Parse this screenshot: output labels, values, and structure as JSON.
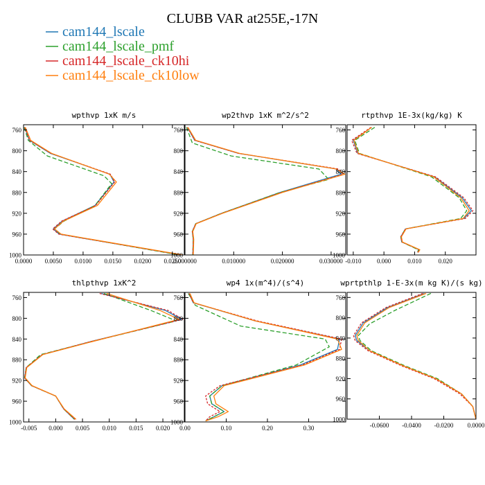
{
  "figure": {
    "title": "CLUBB VAR at255E,-17N",
    "legend": [
      {
        "name": "cam144_lscale",
        "color": "#1f77b4"
      },
      {
        "name": "cam144_lscale_pmf",
        "color": "#2ca02c"
      },
      {
        "name": "cam144_lscale_ck10hi",
        "color": "#d62728"
      },
      {
        "name": "cam144_lscale_ck10low",
        "color": "#ff7f0e"
      }
    ]
  },
  "chart_data": [
    {
      "type": "line",
      "title": "wpthvp  1xK m/s",
      "xlim": [
        0,
        0.027
      ],
      "ylim": [
        1000,
        750
      ],
      "xticks": [
        0,
        0.005,
        0.01,
        0.015,
        0.02,
        0.025
      ],
      "xtick_labels": [
        "0.0000",
        "0.0050",
        "0.0100",
        "0.0150",
        "0.0200",
        "0.0250"
      ],
      "yticks": [
        760,
        800,
        840,
        880,
        920,
        960,
        1000
      ],
      "ytick_labels": [
        "760",
        "800",
        "840",
        "880",
        "920",
        "960",
        "1000"
      ],
      "series": [
        {
          "name": "cam144_lscale",
          "color": "#1f77b4",
          "dash": "",
          "x": [
            0.0002,
            0.001,
            0.0045,
            0.0145,
            0.0152,
            0.012,
            0.0065,
            0.005,
            0.006,
            0.0265
          ],
          "y": [
            755,
            780,
            805,
            845,
            860,
            905,
            935,
            950,
            960,
            1000
          ]
        },
        {
          "name": "cam144_lscale_pmf",
          "color": "#2ca02c",
          "dash": "6,3",
          "x": [
            0.0001,
            0.0008,
            0.004,
            0.0135,
            0.0148,
            0.012,
            0.0068,
            0.0052,
            0.0062,
            0.0262
          ],
          "y": [
            755,
            780,
            810,
            848,
            863,
            905,
            935,
            950,
            960,
            1000
          ]
        },
        {
          "name": "cam144_lscale_ck10hi",
          "color": "#d62728",
          "dash": "3,2",
          "x": [
            0.0002,
            0.001,
            0.0046,
            0.0146,
            0.0153,
            0.0121,
            0.0064,
            0.0049,
            0.0059,
            0.0266
          ],
          "y": [
            755,
            780,
            805,
            845,
            860,
            905,
            935,
            950,
            960,
            1000
          ]
        },
        {
          "name": "cam144_lscale_ck10low",
          "color": "#ff7f0e",
          "dash": "",
          "x": [
            0.0003,
            0.0012,
            0.0047,
            0.0144,
            0.0156,
            0.0124,
            0.0067,
            0.0052,
            0.0063,
            0.0268
          ],
          "y": [
            755,
            780,
            805,
            845,
            860,
            905,
            935,
            950,
            960,
            1000
          ]
        }
      ]
    },
    {
      "type": "line",
      "title": "wp2thvp  1xK m^2/s^2",
      "xlim": [
        0,
        0.033
      ],
      "ylim": [
        1000,
        750
      ],
      "xticks": [
        0,
        0.01,
        0.02,
        0.03
      ],
      "xtick_labels": [
        "0.000000",
        "0.010000",
        "0.020000",
        "0.030000"
      ],
      "yticks": [
        760,
        800,
        840,
        880,
        920,
        960,
        1000
      ],
      "ytick_labels": [
        "760",
        "800",
        "840",
        "880",
        "920",
        "960",
        "1000"
      ],
      "series": [
        {
          "name": "cam144_lscale",
          "color": "#1f77b4",
          "dash": "",
          "x": [
            0.0005,
            0.002,
            0.011,
            0.031,
            0.032,
            0.0195,
            0.0075,
            0.0022,
            0.0015,
            0.0017,
            0.0016
          ],
          "y": [
            755,
            780,
            805,
            835,
            845,
            880,
            920,
            940,
            955,
            970,
            1000
          ]
        },
        {
          "name": "cam144_lscale_pmf",
          "color": "#2ca02c",
          "dash": "6,3",
          "x": [
            0.0003,
            0.0015,
            0.0095,
            0.0275,
            0.0295,
            0.0195,
            0.0075,
            0.0022,
            0.0015,
            0.0017,
            0.0016
          ],
          "y": [
            755,
            785,
            810,
            835,
            855,
            880,
            920,
            940,
            955,
            970,
            1000
          ]
        },
        {
          "name": "cam144_lscale_ck10hi",
          "color": "#d62728",
          "dash": "3,2",
          "x": [
            0.0005,
            0.002,
            0.011,
            0.0315,
            0.0325,
            0.0198,
            0.0076,
            0.0022,
            0.0015,
            0.0017,
            0.0016
          ],
          "y": [
            755,
            780,
            805,
            835,
            845,
            880,
            920,
            940,
            955,
            970,
            1000
          ]
        },
        {
          "name": "cam144_lscale_ck10low",
          "color": "#ff7f0e",
          "dash": "",
          "x": [
            0.0006,
            0.0022,
            0.0112,
            0.031,
            0.0328,
            0.02,
            0.0077,
            0.0023,
            0.0016,
            0.0018,
            0.0017
          ],
          "y": [
            755,
            780,
            805,
            835,
            845,
            880,
            920,
            940,
            955,
            970,
            1000
          ]
        }
      ]
    },
    {
      "type": "line",
      "title": "rtpthvp  1E-3x(kg/kg) K",
      "xlim": [
        -0.012,
        0.03
      ],
      "ylim": [
        1000,
        750
      ],
      "xticks": [
        -0.01,
        0,
        0.01,
        0.02
      ],
      "xtick_labels": [
        "-0.010",
        "0.000",
        "0.010",
        "0.020"
      ],
      "yticks": [
        760,
        800,
        840,
        880,
        920,
        960,
        1000
      ],
      "ytick_labels": [
        "760",
        "800",
        "840",
        "880",
        "920",
        "960",
        "1000"
      ],
      "series": [
        {
          "name": "cam144_lscale",
          "color": "#1f77b4",
          "dash": "",
          "x": [
            -0.004,
            -0.01,
            -0.0085,
            0.0165,
            0.0255,
            0.0285,
            0.026,
            0.007,
            0.0055,
            0.0058,
            0.0115,
            0.011
          ],
          "y": [
            755,
            780,
            805,
            850,
            890,
            915,
            930,
            950,
            965,
            975,
            990,
            995
          ]
        },
        {
          "name": "cam144_lscale_pmf",
          "color": "#2ca02c",
          "dash": "6,3",
          "x": [
            -0.003,
            -0.0095,
            -0.008,
            0.0155,
            0.0245,
            0.027,
            0.025,
            0.007,
            0.0055,
            0.0058,
            0.0112,
            0.011
          ],
          "y": [
            755,
            780,
            805,
            850,
            890,
            915,
            930,
            950,
            965,
            975,
            990,
            995
          ]
        },
        {
          "name": "cam144_lscale_ck10hi",
          "color": "#d62728",
          "dash": "3,2",
          "x": [
            -0.0042,
            -0.0105,
            -0.0088,
            0.0168,
            0.026,
            0.029,
            0.0265,
            0.007,
            0.0055,
            0.0058,
            0.0116,
            0.011
          ],
          "y": [
            755,
            780,
            805,
            850,
            890,
            915,
            930,
            950,
            965,
            975,
            990,
            995
          ]
        },
        {
          "name": "cam144_lscale_ck10low",
          "color": "#ff7f0e",
          "dash": "",
          "x": [
            -0.004,
            -0.0098,
            -0.0083,
            0.0162,
            0.025,
            0.0278,
            0.0258,
            0.0072,
            0.0057,
            0.006,
            0.0117,
            0.0112
          ],
          "y": [
            755,
            780,
            805,
            850,
            890,
            915,
            930,
            950,
            965,
            975,
            990,
            995
          ]
        }
      ]
    },
    {
      "type": "line",
      "title": "thlpthvp  1xK^2",
      "xlim": [
        -0.006,
        0.024
      ],
      "ylim": [
        1000,
        750
      ],
      "xticks": [
        -0.005,
        0,
        0.005,
        0.01,
        0.015,
        0.02
      ],
      "xtick_labels": [
        "-0.005",
        "0.000",
        "0.005",
        "0.010",
        "0.015",
        "0.020"
      ],
      "yticks": [
        760,
        800,
        840,
        880,
        920,
        960,
        1000
      ],
      "ytick_labels": [
        "760",
        "800",
        "840",
        "880",
        "920",
        "960",
        "1000"
      ],
      "series": [
        {
          "name": "cam144_lscale",
          "color": "#1f77b4",
          "dash": "",
          "x": [
            0.0085,
            0.0205,
            0.0235,
            0.0065,
            -0.0025,
            -0.0055,
            -0.0058,
            -0.0045,
            0.0,
            0.0015,
            0.0035
          ],
          "y": [
            752,
            785,
            802,
            845,
            870,
            895,
            915,
            930,
            950,
            975,
            995
          ]
        },
        {
          "name": "cam144_lscale_pmf",
          "color": "#2ca02c",
          "dash": "6,3",
          "x": [
            0.009,
            0.0178,
            0.0225,
            0.0055,
            -0.0028,
            -0.0055,
            -0.0058,
            -0.0045,
            0.0,
            0.0015,
            0.0035
          ],
          "y": [
            752,
            785,
            805,
            848,
            870,
            895,
            915,
            930,
            950,
            975,
            995
          ]
        },
        {
          "name": "cam144_lscale_ck10hi",
          "color": "#d62728",
          "dash": "3,2",
          "x": [
            0.0082,
            0.021,
            0.0237,
            0.0065,
            -0.0025,
            -0.0055,
            -0.0058,
            -0.0045,
            0.0,
            0.0015,
            0.0036
          ],
          "y": [
            752,
            785,
            802,
            845,
            870,
            895,
            915,
            930,
            950,
            975,
            995
          ]
        },
        {
          "name": "cam144_lscale_ck10low",
          "color": "#ff7f0e",
          "dash": "",
          "x": [
            0.0095,
            0.0195,
            0.023,
            0.0068,
            -0.0024,
            -0.0054,
            -0.0057,
            -0.0044,
            0.0,
            0.0016,
            0.0038
          ],
          "y": [
            752,
            785,
            802,
            845,
            870,
            895,
            915,
            930,
            950,
            975,
            995
          ]
        }
      ]
    },
    {
      "type": "line",
      "title": "wp4  1x(m^4)/(s^4)",
      "xlim": [
        0,
        0.39
      ],
      "ylim": [
        1000,
        750
      ],
      "xticks": [
        0,
        0.1,
        0.2,
        0.3
      ],
      "xtick_labels": [
        "0.00",
        "0.10",
        "0.20",
        "0.30"
      ],
      "yticks": [
        760,
        800,
        840,
        880,
        920,
        960,
        1000
      ],
      "ytick_labels": [
        "760",
        "800",
        "840",
        "880",
        "920",
        "960",
        "1000"
      ],
      "series": [
        {
          "name": "cam144_lscale",
          "color": "#1f77b4",
          "dash": "",
          "x": [
            0.01,
            0.02,
            0.17,
            0.375,
            0.37,
            0.28,
            0.09,
            0.06,
            0.065,
            0.095,
            0.07,
            0.05
          ],
          "y": [
            752,
            770,
            805,
            840,
            860,
            890,
            930,
            950,
            965,
            980,
            990,
            998
          ]
        },
        {
          "name": "cam144_lscale_pmf",
          "color": "#2ca02c",
          "dash": "6,3",
          "x": [
            0.008,
            0.025,
            0.135,
            0.34,
            0.35,
            0.27,
            0.09,
            0.06,
            0.065,
            0.095,
            0.07,
            0.05
          ],
          "y": [
            752,
            775,
            815,
            840,
            855,
            890,
            930,
            950,
            965,
            980,
            990,
            998
          ]
        },
        {
          "name": "cam144_lscale_ck10hi",
          "color": "#d62728",
          "dash": "3,2",
          "x": [
            0.01,
            0.02,
            0.175,
            0.38,
            0.375,
            0.285,
            0.085,
            0.05,
            0.055,
            0.085,
            0.06,
            0.05
          ],
          "y": [
            752,
            770,
            805,
            840,
            860,
            890,
            930,
            950,
            965,
            980,
            990,
            998
          ]
        },
        {
          "name": "cam144_lscale_ck10low",
          "color": "#ff7f0e",
          "dash": "",
          "x": [
            0.012,
            0.022,
            0.17,
            0.37,
            0.38,
            0.29,
            0.095,
            0.07,
            0.075,
            0.105,
            0.08,
            0.05
          ],
          "y": [
            752,
            770,
            805,
            840,
            860,
            890,
            930,
            950,
            965,
            980,
            990,
            998
          ]
        }
      ]
    },
    {
      "type": "line",
      "title": "wprtpthlp  1-E-3x(m kg K)/(s kg)",
      "xlim": [
        -0.08,
        0
      ],
      "ylim": [
        1000,
        750
      ],
      "xticks": [
        -0.06,
        -0.04,
        -0.02,
        0
      ],
      "xtick_labels": [
        "-0.0600",
        "-0.0400",
        "-0.0200",
        "0.0000"
      ],
      "yticks": [
        760,
        800,
        840,
        880,
        920,
        960,
        1000
      ],
      "ytick_labels": [
        "760",
        "800",
        "840",
        "880",
        "920",
        "960",
        "1000"
      ],
      "series": [
        {
          "name": "cam144_lscale",
          "color": "#1f77b4",
          "dash": "",
          "x": [
            -0.032,
            -0.055,
            -0.07,
            -0.075,
            -0.074,
            -0.066,
            -0.045,
            -0.025,
            -0.009,
            -0.002,
            0.0
          ],
          "y": [
            752,
            780,
            810,
            835,
            845,
            865,
            895,
            920,
            950,
            975,
            1000
          ]
        },
        {
          "name": "cam144_lscale_pmf",
          "color": "#2ca02c",
          "dash": "6,3",
          "x": [
            -0.028,
            -0.05,
            -0.066,
            -0.073,
            -0.072,
            -0.065,
            -0.044,
            -0.024,
            -0.009,
            -0.002,
            0.0
          ],
          "y": [
            752,
            785,
            812,
            835,
            845,
            865,
            895,
            920,
            950,
            975,
            1000
          ]
        },
        {
          "name": "cam144_lscale_ck10hi",
          "color": "#d62728",
          "dash": "3,2",
          "x": [
            -0.033,
            -0.056,
            -0.071,
            -0.076,
            -0.075,
            -0.067,
            -0.046,
            -0.026,
            -0.01,
            -0.002,
            0.0
          ],
          "y": [
            752,
            780,
            810,
            835,
            845,
            865,
            895,
            920,
            950,
            975,
            1000
          ]
        },
        {
          "name": "cam144_lscale_ck10low",
          "color": "#ff7f0e",
          "dash": "",
          "x": [
            -0.031,
            -0.054,
            -0.069,
            -0.074,
            -0.073,
            -0.066,
            -0.045,
            -0.025,
            -0.009,
            -0.002,
            0.0
          ],
          "y": [
            752,
            780,
            810,
            835,
            845,
            865,
            895,
            920,
            950,
            975,
            1000
          ]
        }
      ]
    }
  ]
}
